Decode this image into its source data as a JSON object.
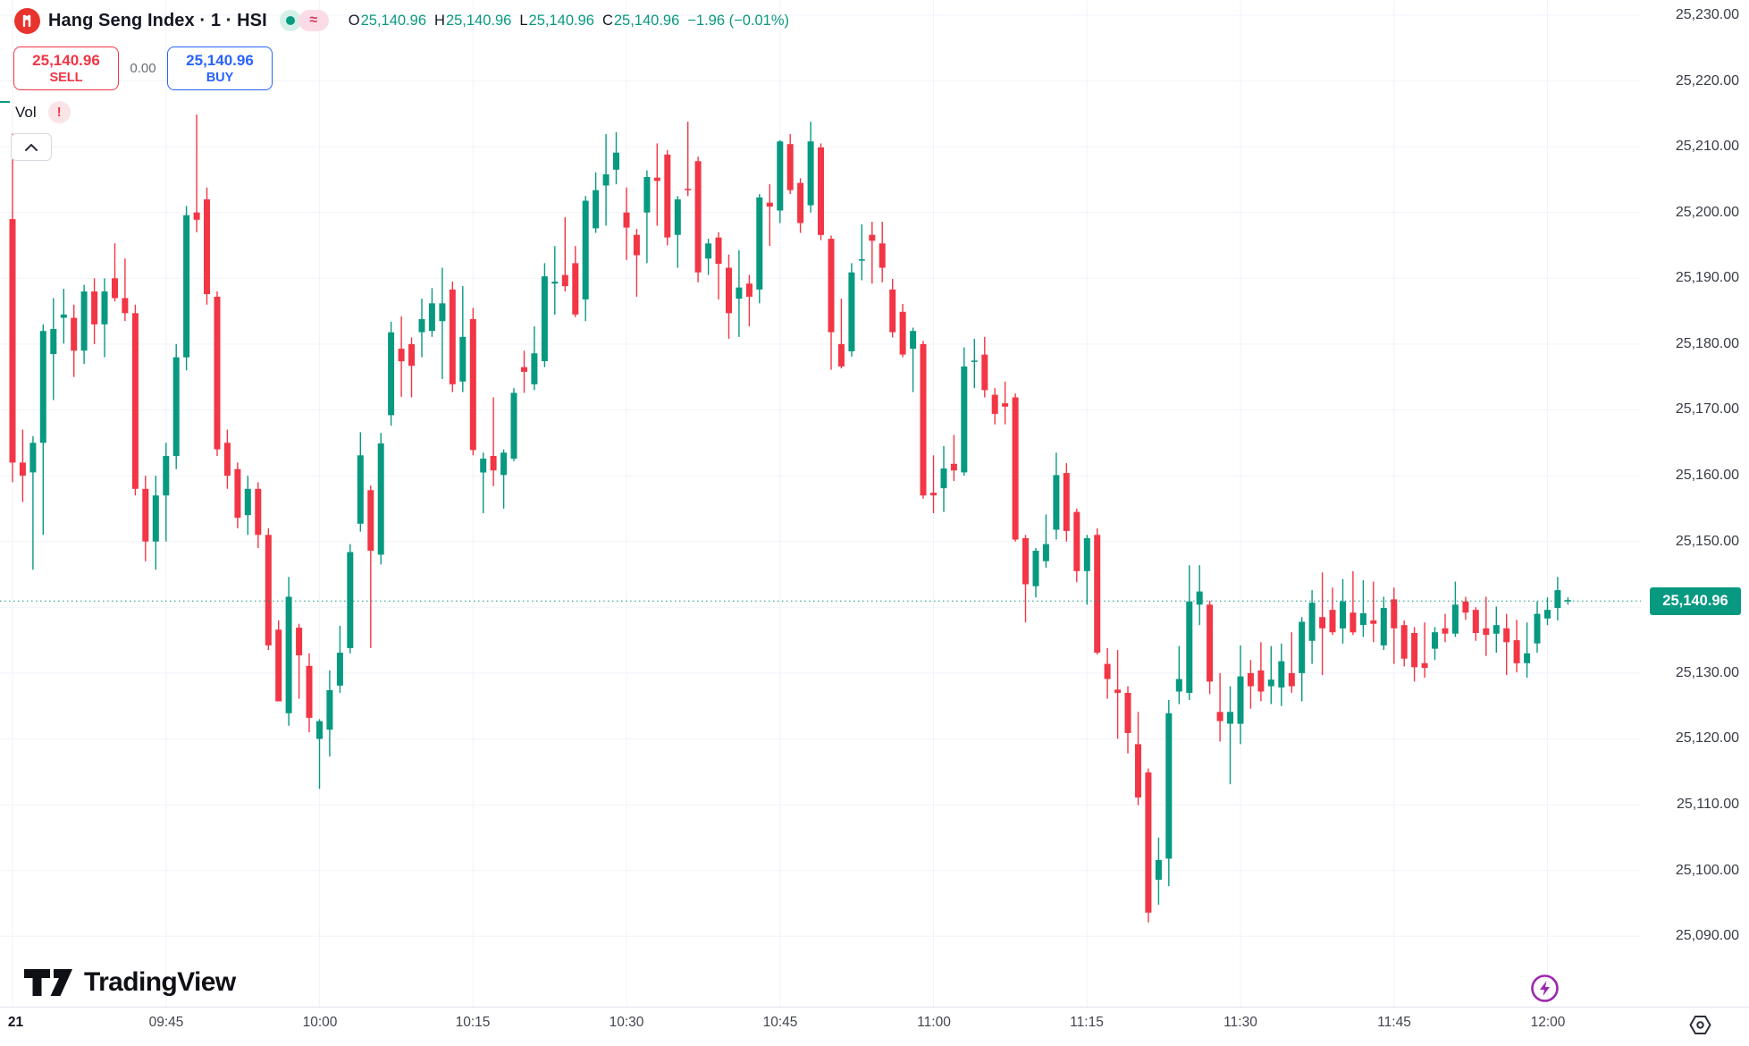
{
  "header": {
    "title": "Hang Seng Index · 1 · HSI",
    "logo_color": "#e8342e",
    "ohlc": {
      "o_label": "O",
      "o": "25,140.96",
      "h_label": "H",
      "h": "25,140.96",
      "l_label": "L",
      "l": "25,140.96",
      "c_label": "C",
      "c": "25,140.96",
      "change": "−1.96 (−0.01%)"
    },
    "sell_button": {
      "price": "25,140.96",
      "label": "SELL",
      "color": "#f23645"
    },
    "spread": "0.00",
    "buy_button": {
      "price": "25,140.96",
      "label": "BUY",
      "color": "#2962ff"
    },
    "indicator": {
      "label": "Vol",
      "warning_glyph": "!"
    },
    "badges": {
      "approx_glyph": "≈"
    }
  },
  "footer": {
    "brand": "TradingView"
  },
  "price_axis": {
    "labels": [
      {
        "text": "25,230.00",
        "price": 25230
      },
      {
        "text": "25,220.00",
        "price": 25220
      },
      {
        "text": "25,210.00",
        "price": 25210
      },
      {
        "text": "25,200.00",
        "price": 25200
      },
      {
        "text": "25,190.00",
        "price": 25190
      },
      {
        "text": "25,180.00",
        "price": 25180
      },
      {
        "text": "25,170.00",
        "price": 25170
      },
      {
        "text": "25,160.00",
        "price": 25160
      },
      {
        "text": "25,150.00",
        "price": 25150
      },
      {
        "text": "25,130.00",
        "price": 25130
      },
      {
        "text": "25,120.00",
        "price": 25120
      },
      {
        "text": "25,110.00",
        "price": 25110
      },
      {
        "text": "25,100.00",
        "price": 25100
      },
      {
        "text": "25,090.00",
        "price": 25090
      }
    ],
    "gridline_prices": [
      25090,
      25100,
      25110,
      25120,
      25130,
      25140,
      25150,
      25160,
      25170,
      25180,
      25190,
      25200,
      25210,
      25220,
      25230
    ],
    "current_price_tag": {
      "text": "25,140.96",
      "price": 25140.96,
      "color": "#089981"
    }
  },
  "time_axis": {
    "labels": [
      {
        "text": "21",
        "candle_index": 0,
        "emphasis": true
      },
      {
        "text": "09:45",
        "candle_index": 15
      },
      {
        "text": "10:00",
        "candle_index": 30
      },
      {
        "text": "10:15",
        "candle_index": 45
      },
      {
        "text": "10:30",
        "candle_index": 60
      },
      {
        "text": "10:45",
        "candle_index": 75
      },
      {
        "text": "11:00",
        "candle_index": 90
      },
      {
        "text": "11:15",
        "candle_index": 105
      },
      {
        "text": "11:30",
        "candle_index": 120
      },
      {
        "text": "11:45",
        "candle_index": 135
      },
      {
        "text": "12:00",
        "candle_index": 150
      }
    ]
  },
  "chart_data": {
    "type": "candlestick",
    "title": "Hang Seng Index",
    "symbol": "HSI",
    "interval": "1",
    "start_time": "09:30",
    "interval_minutes": 1,
    "up_color": "#089981",
    "down_color": "#f23645",
    "grid_color": "#f0f3fa",
    "ylim": [
      25079.3,
      25232.3
    ],
    "last_price": 25140.96,
    "x0": 14,
    "dx": 11.45,
    "candle_width": 7,
    "columns": [
      "open",
      "high",
      "low",
      "close"
    ],
    "candles": [
      [
        25199,
        25212,
        25159,
        25162
      ],
      [
        25162,
        25167,
        25156,
        25160
      ],
      [
        25160.5,
        25166,
        25145.7,
        25165
      ],
      [
        25165,
        25183,
        25151,
        25182
      ],
      [
        25178.5,
        25187,
        25171.5,
        25182.3
      ],
      [
        25184,
        25188.4,
        25180.1,
        25184.5
      ],
      [
        25184,
        25186,
        25175,
        25179
      ],
      [
        25179,
        25189,
        25177,
        25188
      ],
      [
        25188,
        25190,
        25180,
        25183
      ],
      [
        25183,
        25190,
        25178,
        25188
      ],
      [
        25190,
        25195.3,
        25186.5,
        25187
      ],
      [
        25187,
        25193,
        25183.5,
        25184.7
      ],
      [
        25184.7,
        25186,
        25157,
        25158
      ],
      [
        25158,
        25160,
        25147,
        25150
      ],
      [
        25150,
        25160,
        25145.7,
        25157
      ],
      [
        25157,
        25165,
        25150,
        25163
      ],
      [
        25163,
        25180,
        25161,
        25178
      ],
      [
        25178,
        25201,
        25176,
        25199.6
      ],
      [
        25200,
        25214.9,
        25197,
        25198.9
      ],
      [
        25202,
        25203.8,
        25186,
        25187.6
      ],
      [
        25187.2,
        25188,
        25163,
        25164
      ],
      [
        25165,
        25167,
        25158,
        25160
      ],
      [
        25161,
        25162,
        25152,
        25153.6
      ],
      [
        25154,
        25160,
        25151,
        25158
      ],
      [
        25158,
        25159,
        25149,
        25151
      ],
      [
        25151,
        25152,
        25133.5,
        25134.2
      ],
      [
        25136.6,
        25138,
        25125.7,
        25125.7
      ],
      [
        25123.9,
        25144.6,
        25122,
        25141.6
      ],
      [
        25136.9,
        25137.5,
        25126.1,
        25132.7
      ],
      [
        25131.1,
        25133,
        25121,
        25123.2
      ],
      [
        25120,
        25123,
        25112.4,
        25122.7
      ],
      [
        25121.4,
        25130.4,
        25117.3,
        25127.4
      ],
      [
        25128.1,
        25137.2,
        25127,
        25133.1
      ],
      [
        25133.8,
        25149.6,
        25133,
        25148.4
      ],
      [
        25152.7,
        25166.6,
        25151.5,
        25163.1
      ],
      [
        25157.8,
        25158.5,
        25133.8,
        25148.6
      ],
      [
        25148,
        25166.5,
        25146.5,
        25164.9
      ],
      [
        25169.2,
        25183.4,
        25167.6,
        25181.8
      ],
      [
        25179.3,
        25184.2,
        25172,
        25177.4
      ],
      [
        25180,
        25181,
        25171.9,
        25176.7
      ],
      [
        25181.8,
        25186.9,
        25178,
        25183.8
      ],
      [
        25182,
        25188.5,
        25181.1,
        25186.2
      ],
      [
        25183.5,
        25191.6,
        25174.7,
        25186.2
      ],
      [
        25188.3,
        25189.5,
        25172.7,
        25173.9
      ],
      [
        25174.3,
        25188.8,
        25172.7,
        25181.1
      ],
      [
        25183.8,
        25185.5,
        25163.1,
        25163.9
      ],
      [
        25160.5,
        25163.5,
        25154.3,
        25162.6
      ],
      [
        25163,
        25171.9,
        25158.4,
        25160.8
      ],
      [
        25160.1,
        25164,
        25155,
        25163.5
      ],
      [
        25162.6,
        25173.3,
        25162.2,
        25172.6
      ],
      [
        25176.5,
        25179,
        25172.6,
        25175.8
      ],
      [
        25173.9,
        25182.7,
        25173,
        25178.6
      ],
      [
        25177.4,
        25192.3,
        25176.5,
        25190.3
      ],
      [
        25189.2,
        25194.9,
        25184.5,
        25189.5
      ],
      [
        25190.5,
        25199.3,
        25188,
        25188.8
      ],
      [
        25192.3,
        25194.9,
        25184.1,
        25184.5
      ],
      [
        25186.8,
        25202.5,
        25183.5,
        25201.8
      ],
      [
        25197.6,
        25206.1,
        25196.9,
        25203.4
      ],
      [
        25204.1,
        25211.9,
        25198,
        25205.8
      ],
      [
        25206.5,
        25212.2,
        25204.3,
        25209.1
      ],
      [
        25200,
        25203.8,
        25192.8,
        25197.7
      ],
      [
        25196.6,
        25197.5,
        25187.2,
        25193.5
      ],
      [
        25200,
        25206.4,
        25192.3,
        25205.4
      ],
      [
        25205.3,
        25210.5,
        25198,
        25204.8
      ],
      [
        25208.8,
        25209.5,
        25195,
        25196.2
      ],
      [
        25196.6,
        25202.5,
        25191.6,
        25202
      ],
      [
        25203.6,
        25213.8,
        25202.5,
        25203.4
      ],
      [
        25207.8,
        25208.5,
        25189.4,
        25190.9
      ],
      [
        25193,
        25196,
        25190.5,
        25195.3
      ],
      [
        25196.2,
        25197,
        25186.8,
        25192.2
      ],
      [
        25191.6,
        25193.6,
        25180.8,
        25184.7
      ],
      [
        25186.9,
        25194.3,
        25181.1,
        25188.6
      ],
      [
        25189.2,
        25190.5,
        25182.7,
        25187.2
      ],
      [
        25188.3,
        25202.8,
        25186.2,
        25202.3
      ],
      [
        25201.5,
        25204.3,
        25194.9,
        25200.9
      ],
      [
        25200.3,
        25211,
        25198.4,
        25210.8
      ],
      [
        25210.4,
        25211.9,
        25202.8,
        25203.4
      ],
      [
        25204.5,
        25205.2,
        25196.9,
        25198.4
      ],
      [
        25201.1,
        25213.8,
        25200,
        25210.8
      ],
      [
        25209.9,
        25210.5,
        25195.8,
        25196.6
      ],
      [
        25196,
        25196.5,
        25176.1,
        25181.8
      ],
      [
        25180,
        25186.9,
        25176.3,
        25176.6
      ],
      [
        25178.9,
        25192.3,
        25178.1,
        25190.9
      ],
      [
        25192.8,
        25198.2,
        25189.7,
        25192.9
      ],
      [
        25196.6,
        25198.6,
        25189.2,
        25195.7
      ],
      [
        25195.3,
        25198.6,
        25189.4,
        25191.6
      ],
      [
        25188.3,
        25189.9,
        25181,
        25181.8
      ],
      [
        25184.9,
        25186.1,
        25178,
        25178.4
      ],
      [
        25179.3,
        25182.5,
        25172.7,
        25182
      ],
      [
        25180,
        25180.5,
        25156.5,
        25157
      ],
      [
        25157.4,
        25163.1,
        25154.3,
        25157
      ],
      [
        25158.1,
        25164.5,
        25154.5,
        25161.1
      ],
      [
        25161.8,
        25166.2,
        25159.2,
        25160.8
      ],
      [
        25160.5,
        25179.5,
        25160,
        25176.6
      ],
      [
        25177.4,
        25180.8,
        25173.3,
        25177.5
      ],
      [
        25178.4,
        25181.1,
        25171.9,
        25173
      ],
      [
        25172.3,
        25173.3,
        25167.8,
        25169.4
      ],
      [
        25171,
        25174.3,
        25167.8,
        25170.5
      ],
      [
        25171.9,
        25172.5,
        25150,
        25150.3
      ],
      [
        25150.5,
        25151,
        25137.7,
        25143.5
      ],
      [
        25143.2,
        25149,
        25141.5,
        25148.6
      ],
      [
        25147,
        25154.1,
        25146,
        25149.6
      ],
      [
        25151.8,
        25163.5,
        25150.3,
        25160.1
      ],
      [
        25160.4,
        25161.9,
        25150,
        25151.6
      ],
      [
        25154.5,
        25155,
        25143.8,
        25145.5
      ],
      [
        25145.5,
        25151,
        25140.4,
        25150.5
      ],
      [
        25151,
        25152,
        25132.8,
        25133.1
      ],
      [
        25131.4,
        25133.8,
        25126.1,
        25129.1
      ],
      [
        25127.5,
        25133.5,
        25120,
        25127
      ],
      [
        25127,
        25128,
        25117.8,
        25120.9
      ],
      [
        25119.2,
        25124.1,
        25109.9,
        25111.1
      ],
      [
        25114.9,
        25115.5,
        25092.1,
        25093.6
      ],
      [
        25098.6,
        25105,
        25094.8,
        25101.6
      ],
      [
        25101.8,
        25125.9,
        25097.6,
        25123.9
      ],
      [
        25127.2,
        25134.1,
        25125.3,
        25129.1
      ],
      [
        25127,
        25146.4,
        25125.9,
        25140.9
      ],
      [
        25140.4,
        25146.4,
        25137.3,
        25142.4
      ],
      [
        25140.4,
        25141,
        25126.8,
        25128.7
      ],
      [
        25124.1,
        25130,
        25119.6,
        25122.7
      ],
      [
        25122.3,
        25128,
        25113.1,
        25124.1
      ],
      [
        25122.3,
        25134.2,
        25119.2,
        25129.5
      ],
      [
        25130,
        25132,
        25124.6,
        25128
      ],
      [
        25130.4,
        25134.7,
        25125.7,
        25127.2
      ],
      [
        25128,
        25134.1,
        25125.3,
        25129
      ],
      [
        25127.8,
        25134.5,
        25125,
        25131.8
      ],
      [
        25130,
        25136.2,
        25127,
        25128
      ],
      [
        25130,
        25138.5,
        25125.7,
        25137.8
      ],
      [
        25134.9,
        25142.6,
        25131.4,
        25140.7
      ],
      [
        25138.5,
        25145.3,
        25129.7,
        25136.8
      ],
      [
        25139.6,
        25143,
        25135.8,
        25136.2
      ],
      [
        25136.8,
        25144.3,
        25134.5,
        25140.9
      ],
      [
        25139.2,
        25145.5,
        25135.8,
        25136.2
      ],
      [
        25137.3,
        25144.1,
        25135.5,
        25139.1
      ],
      [
        25138,
        25143.9,
        25134.7,
        25137.5
      ],
      [
        25134.2,
        25141.6,
        25133.5,
        25139.9
      ],
      [
        25141.2,
        25143,
        25131.4,
        25136.8
      ],
      [
        25137.3,
        25138,
        25131,
        25132.2
      ],
      [
        25136.1,
        25137,
        25128.7,
        25130.9
      ],
      [
        25131.5,
        25137.7,
        25129.3,
        25130.8
      ],
      [
        25133.7,
        25137,
        25132,
        25136.2
      ],
      [
        25136.8,
        25139,
        25134.7,
        25136
      ],
      [
        25136,
        25143.9,
        25135.5,
        25140.4
      ],
      [
        25140.9,
        25141.6,
        25138.1,
        25139.2
      ],
      [
        25139.6,
        25140,
        25134.9,
        25136.1
      ],
      [
        25136.8,
        25141.6,
        25132.6,
        25135.8
      ],
      [
        25136,
        25140.1,
        25133.1,
        25137.3
      ],
      [
        25136.8,
        25139,
        25129.7,
        25134.7
      ],
      [
        25135,
        25138.1,
        25130.1,
        25131.5
      ],
      [
        25131.5,
        25137.7,
        25129.3,
        25133
      ],
      [
        25134.5,
        25140.9,
        25133.1,
        25139
      ],
      [
        25138.3,
        25141.5,
        25137.3,
        25139.6
      ],
      [
        25139.9,
        25144.6,
        25138,
        25142.6
      ],
      [
        25141,
        25141.5,
        25140.4,
        25141.1
      ]
    ]
  }
}
